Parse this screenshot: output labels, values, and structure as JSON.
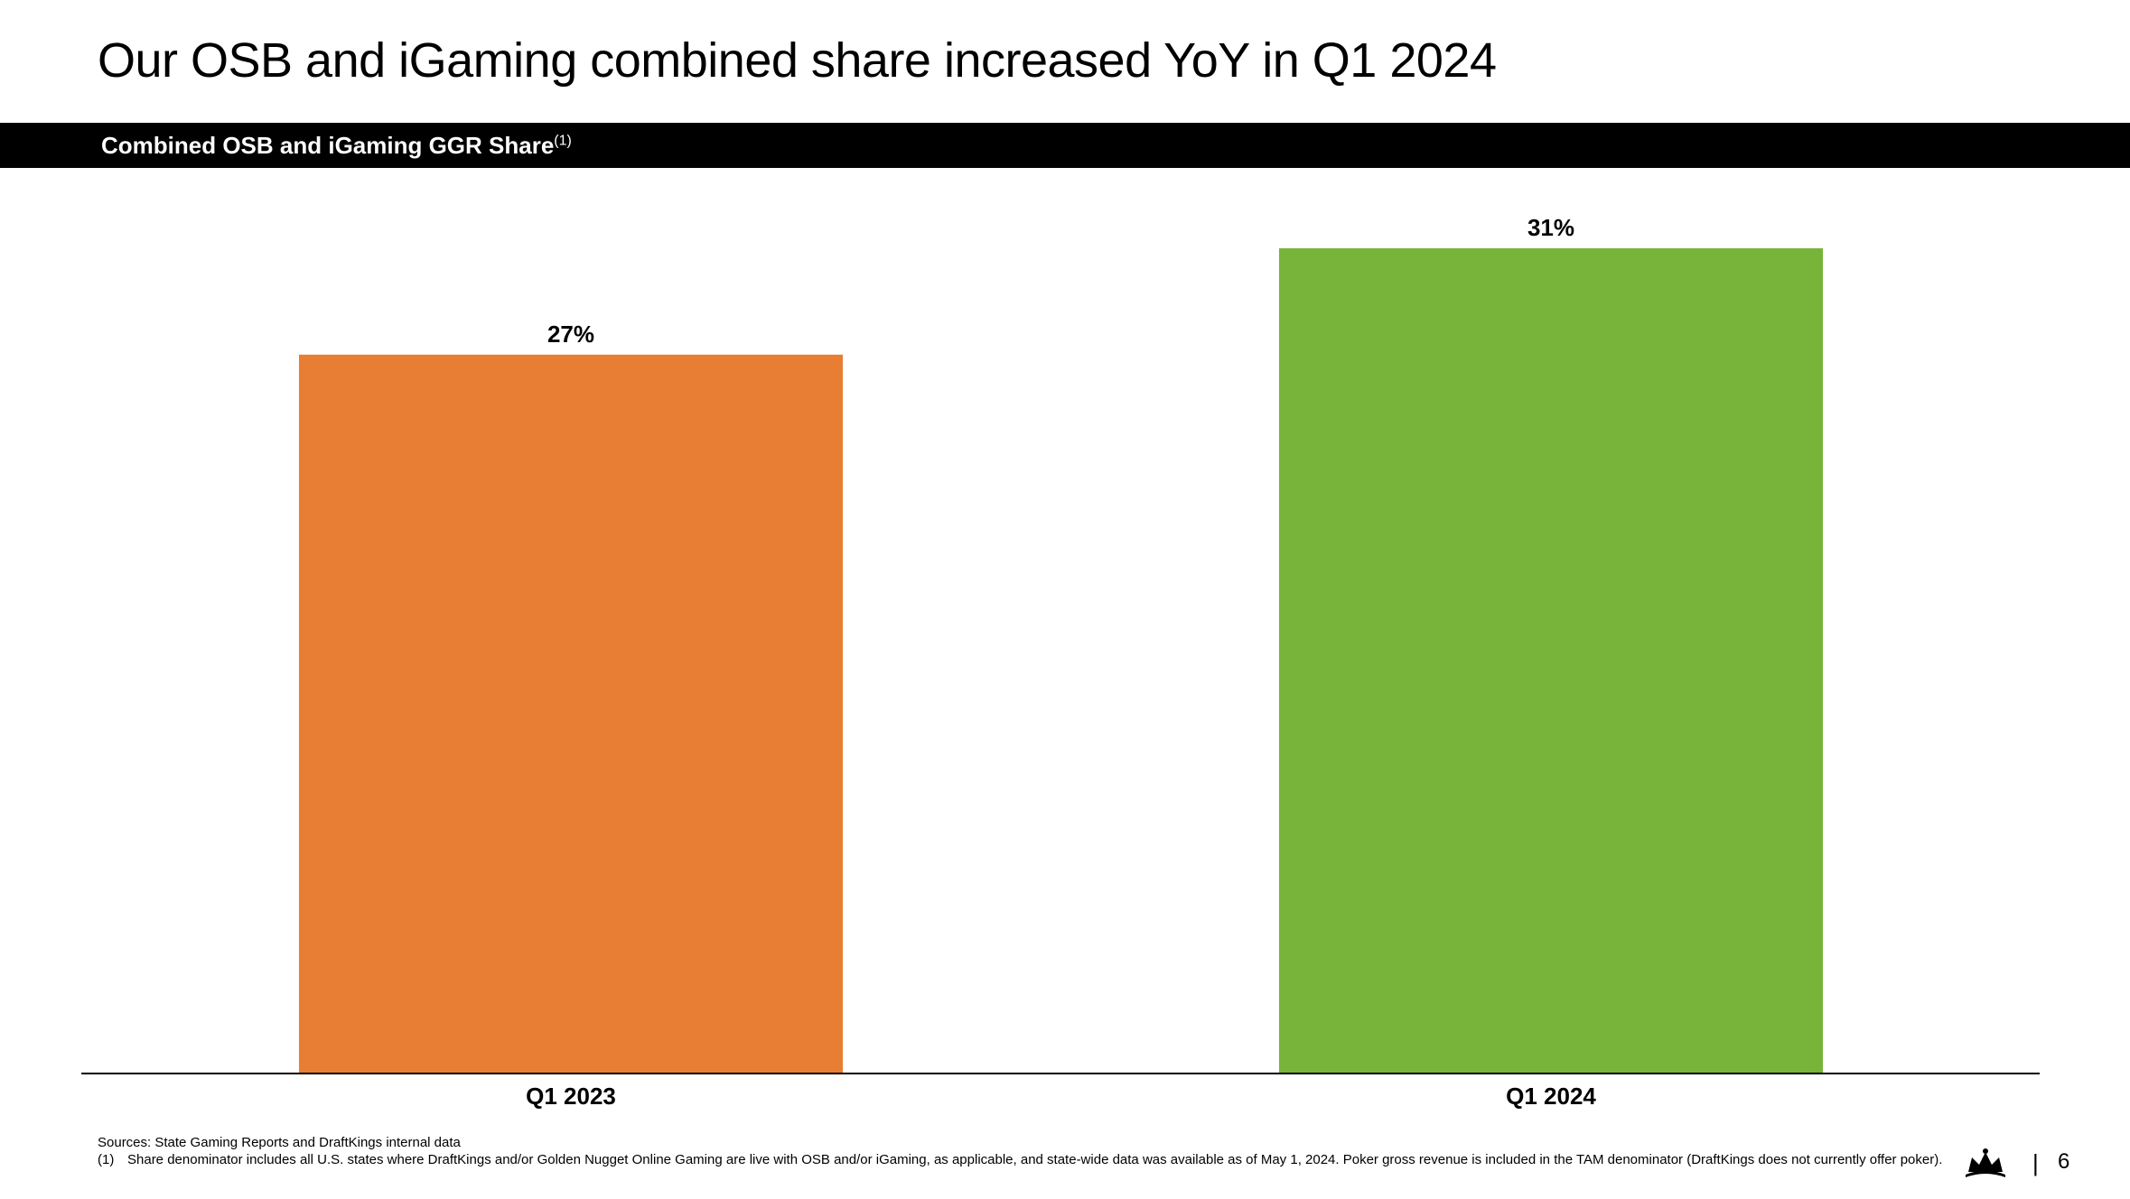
{
  "slide": {
    "title": "Our OSB and iGaming combined share increased YoY in Q1 2024",
    "banner_title": "Combined OSB and iGaming GGR Share",
    "banner_superscript": "(1)",
    "page_number": "6",
    "page_separator": "|"
  },
  "chart_data": {
    "type": "bar",
    "title": "Combined OSB and iGaming GGR Share(1)",
    "categories": [
      "Q1 2023",
      "Q1 2024"
    ],
    "values": [
      27,
      31
    ],
    "data_labels": [
      "27%",
      "31%"
    ],
    "colors": [
      "#E87D34",
      "#78B33A"
    ],
    "ylim": [
      0,
      31
    ],
    "grid": false,
    "legend": "none",
    "xlabel": "",
    "ylabel": ""
  },
  "footnotes": {
    "sources": "Sources: State Gaming Reports and DraftKings internal data",
    "notes": [
      {
        "marker": "(1)",
        "text": "Share denominator includes all U.S. states where DraftKings and/or Golden Nugget Online Gaming are live with OSB and/or iGaming, as applicable, and state-wide data was available as of May 1, 2024. Poker gross revenue is included in the TAM denominator (DraftKings does not currently offer poker)."
      }
    ]
  },
  "logo": {
    "icon": "crown-icon"
  }
}
